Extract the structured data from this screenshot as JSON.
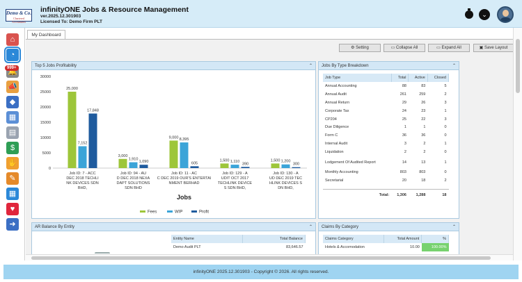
{
  "header": {
    "logo_line1": "Demo & Co.",
    "logo_line2": "Chartered Accountants",
    "title": "infinityONE Jobs & Resource Management",
    "version": "ver.2025.12.301903",
    "license": "Licensed To: Demo Firm PLT"
  },
  "sidebar": {
    "badge": "999+",
    "items": [
      {
        "name": "home-icon",
        "color": "#d9534f",
        "glyph": "⌂"
      },
      {
        "name": "dashboard-icon",
        "color": "#2b88d8",
        "glyph": "◔"
      },
      {
        "name": "notification-icon",
        "color": "#888888",
        "glyph": "🔔"
      },
      {
        "name": "megaphone-icon",
        "color": "#e9a040",
        "glyph": "📣"
      },
      {
        "name": "diamond-stack-icon",
        "color": "#3b6fc4",
        "glyph": "◆"
      },
      {
        "name": "grid-icon",
        "color": "#5b8fd6",
        "glyph": "▦"
      },
      {
        "name": "calendar-icon",
        "color": "#9aa3b0",
        "glyph": "▤"
      },
      {
        "name": "money-icon",
        "color": "#2e9e55",
        "glyph": "$"
      },
      {
        "name": "handshake-icon",
        "color": "#f0a030",
        "glyph": "✋"
      },
      {
        "name": "clipboard-icon",
        "color": "#e58a2a",
        "glyph": "✎"
      },
      {
        "name": "calculator-icon",
        "color": "#2b88d8",
        "glyph": "▦"
      },
      {
        "name": "heart-icon",
        "color": "#e0263c",
        "glyph": "♥"
      },
      {
        "name": "logout-icon",
        "color": "#3b6fc4",
        "glyph": "➜"
      }
    ]
  },
  "tab": {
    "label": "My Dashboard"
  },
  "toolbar": {
    "setting": "Setting",
    "collapse": "Collapse All",
    "expand": "Expand All",
    "save": "Save Layout"
  },
  "profit": {
    "title": "Top 5 Jobs Profitability",
    "xlabel": "Jobs",
    "chart_data": {
      "type": "bar",
      "ylim": [
        0,
        30000
      ],
      "yticks": [
        0,
        5000,
        10000,
        15000,
        20000,
        25000,
        30000
      ],
      "categories": [
        [
          "Job ID: 7 - ACC",
          "DEC 2018 TECHLI",
          "NK DEVICES SDN",
          "BHD,"
        ],
        [
          "Job ID: 94 - AU",
          "D DEC 2018 NEXA",
          "DAPT SOLUTIONS",
          "SDN BHD"
        ],
        [
          "Job ID: 11 - AC",
          "C DEC 2019 OUR'S ENTERTAI",
          "NMENT BERHAD"
        ],
        [
          "Job ID: 129 - A",
          "UDIT OCT 2017",
          "TECHLINK DEVICE",
          "S SDN BHD,"
        ],
        [
          "Job ID: 130 - A",
          "UD DEC 2019 TEC",
          "HLINK DEVICES S",
          "DN BHD,"
        ]
      ],
      "series": [
        {
          "name": "Fees",
          "color": "#9dc63a",
          "values": [
            25000,
            3000,
            9000,
            1500,
            1500
          ],
          "labels": [
            "25,000",
            "3,000",
            "9,000",
            "1,500",
            "1,500"
          ]
        },
        {
          "name": "WIP",
          "color": "#3ba4d8",
          "values": [
            7152,
            1910,
            8395,
            1110,
            1200
          ],
          "labels": [
            "7,152",
            "1,910",
            "8,395",
            "1,110",
            "1,200"
          ]
        },
        {
          "name": "Profit",
          "color": "#1f5b9e",
          "values": [
            17848,
            1090,
            605,
            390,
            300
          ],
          "labels": [
            "17,848",
            "1,090",
            "605",
            "390",
            "300"
          ]
        }
      ]
    }
  },
  "jobtype": {
    "title": "Jobs By Type Breakdown",
    "cols": [
      "Job Type",
      "Total",
      "Active",
      "Closed"
    ],
    "rows": [
      [
        "Annual Accounting",
        "88",
        "83",
        "5"
      ],
      [
        "Annual Audit",
        "261",
        "259",
        "2"
      ],
      [
        "Annual Return",
        "29",
        "26",
        "3"
      ],
      [
        "Corporate Tax",
        "24",
        "23",
        "1"
      ],
      [
        "CP204",
        "25",
        "22",
        "3"
      ],
      [
        "Due Diligence",
        "1",
        "1",
        "0"
      ],
      [
        "Form C",
        "36",
        "36",
        "0"
      ],
      [
        "Internal Audit",
        "3",
        "2",
        "1"
      ],
      [
        "Liquidation",
        "2",
        "2",
        "0"
      ],
      [
        "Lodgement Of Audited Report",
        "14",
        "13",
        "1"
      ],
      [
        "Monthly Accounting",
        "803",
        "803",
        "0"
      ],
      [
        "Secretarial",
        "20",
        "18",
        "2"
      ]
    ],
    "total": {
      "label": "Total:",
      "total": "1,306",
      "active": "1,288",
      "closed": "18"
    }
  },
  "arbalance": {
    "title": "AR Balance By Entity",
    "cols": [
      "Entity Name",
      "Total Balance"
    ],
    "rows": [
      [
        "Demo Audit PLT",
        "83,646.57"
      ]
    ]
  },
  "claims": {
    "title": "Claims By Category",
    "cols": [
      "Claims Category",
      "Total Amount",
      "%"
    ],
    "rows": [
      [
        "Hotels & Accomodation",
        "10.00",
        "100.00%"
      ]
    ]
  },
  "footer": {
    "text": "infinityONE 2025.12.301903 - Copyright © 2026. All rights reserved."
  }
}
